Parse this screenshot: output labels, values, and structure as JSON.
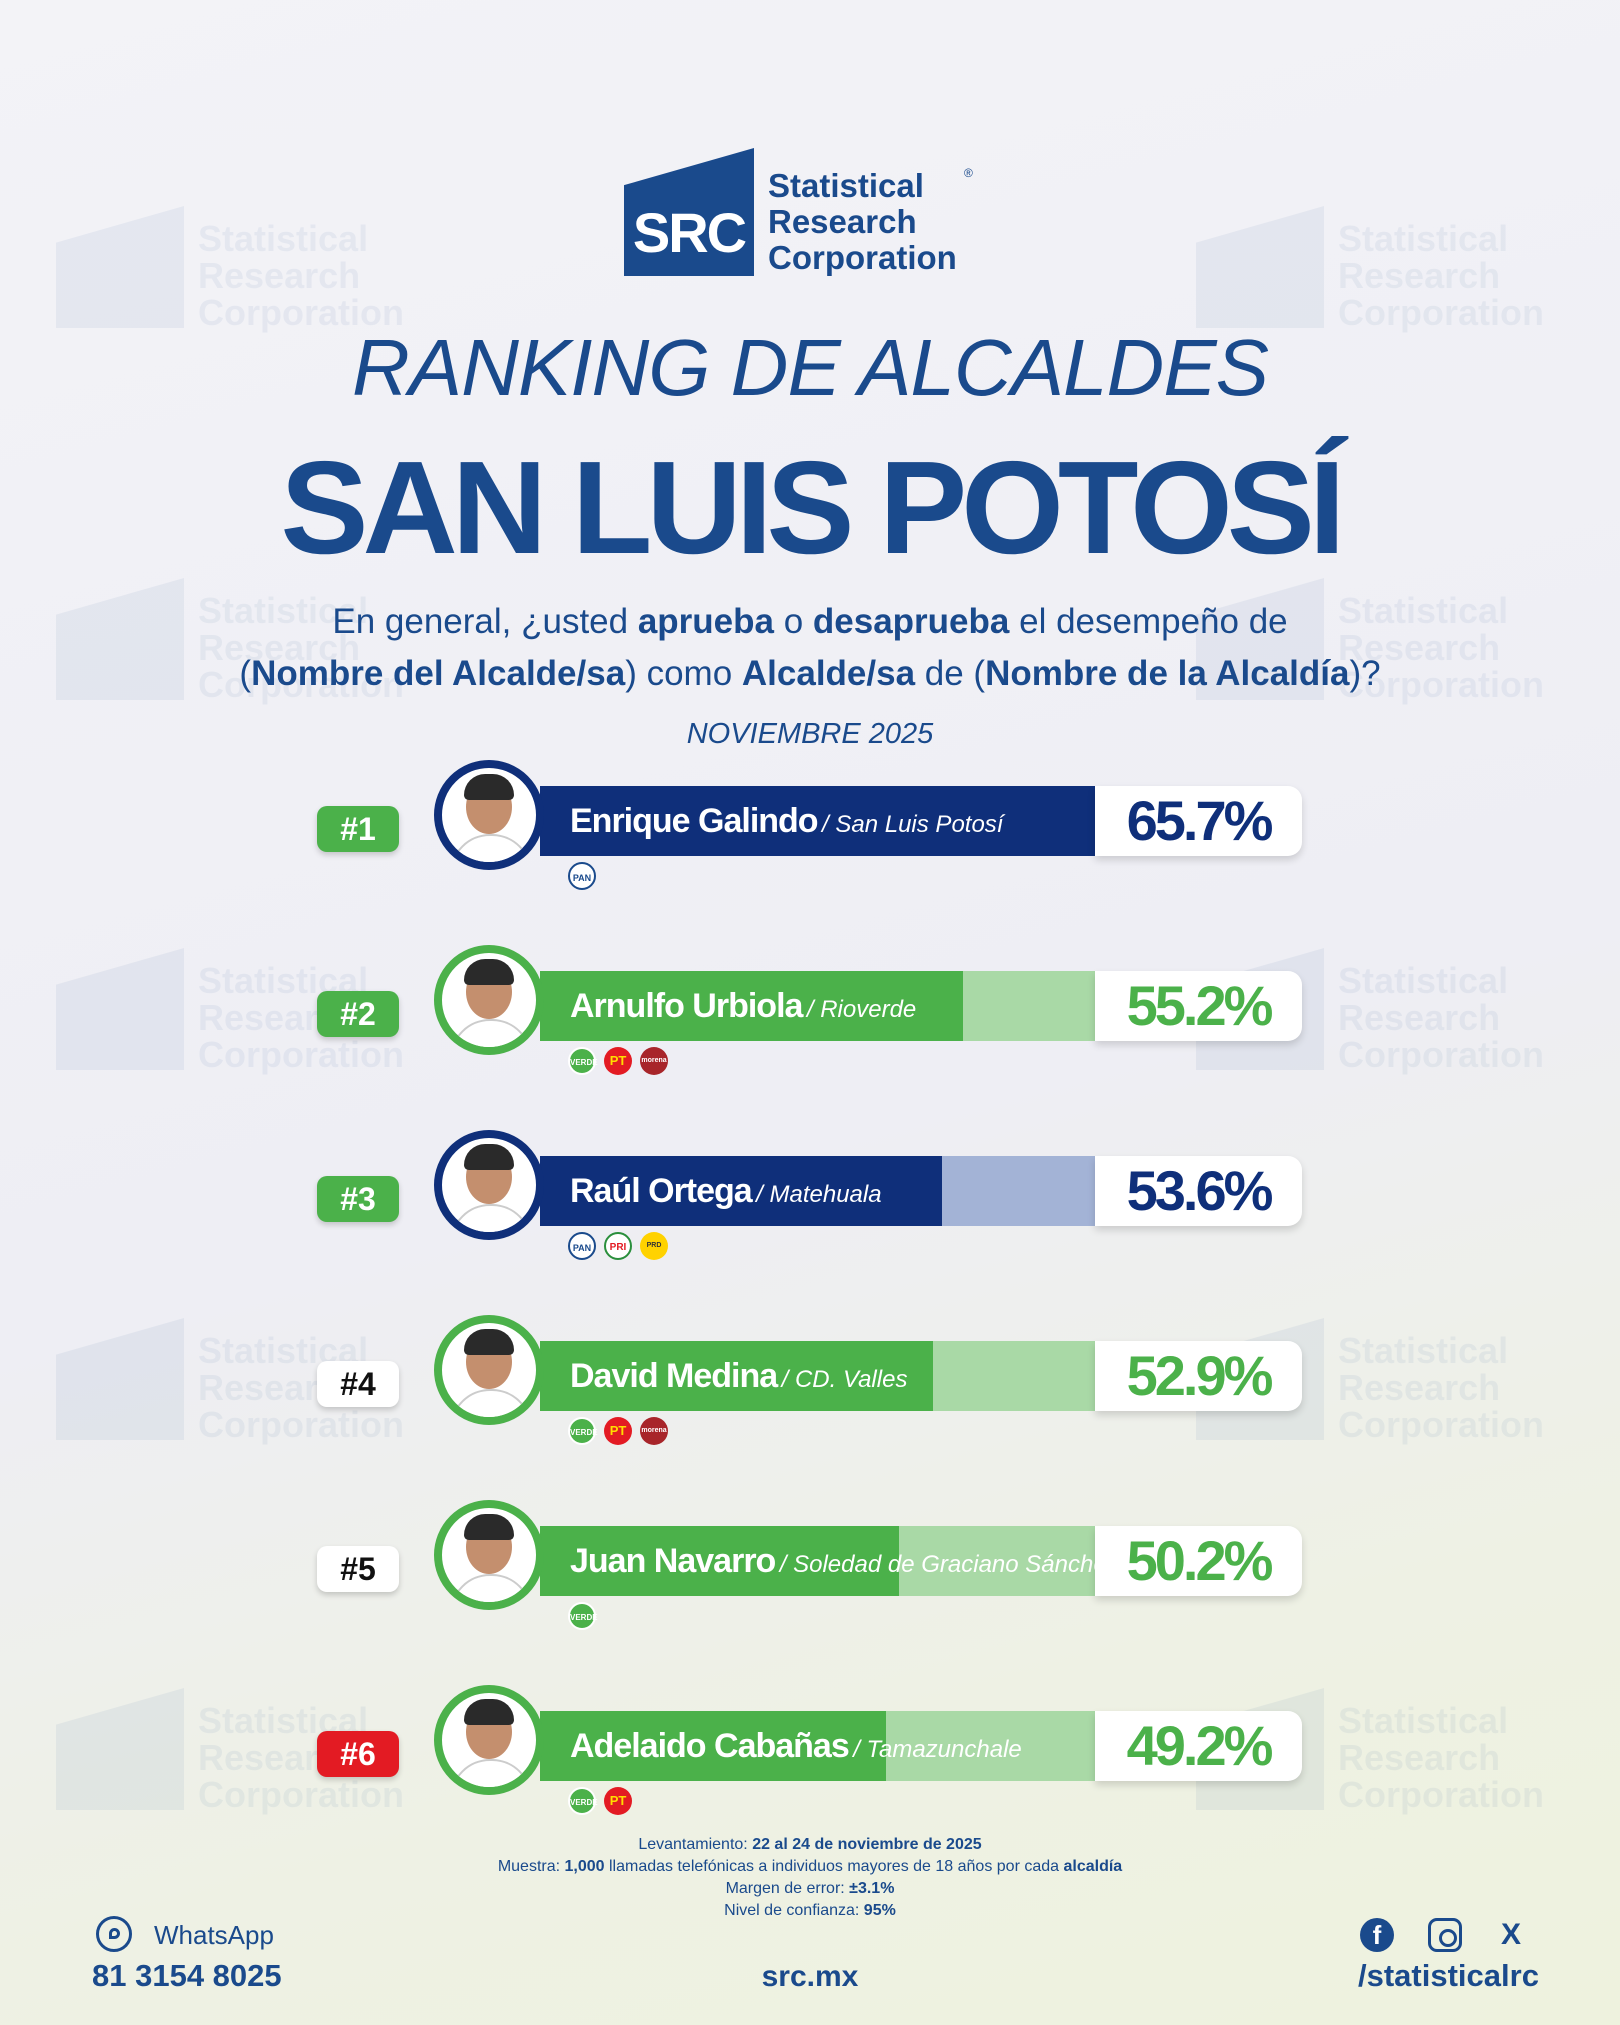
{
  "brand": {
    "mark": "SRC",
    "name_lines": [
      "Statistical",
      "Research",
      "Corporation"
    ],
    "registered": "®"
  },
  "header": {
    "kicker": "RANKING DE ALCALDES",
    "title": "SAN LUIS POTOSÍ",
    "question": {
      "p1": "En general, ¿usted ",
      "b1": "aprueba",
      "p2": " o ",
      "b2": "desaprueba",
      "p3": " el desempeño de",
      "p4": "(",
      "b3": "Nombre del Alcalde/sa",
      "p5": ") como ",
      "b4": "Alcalde/sa",
      "p6": " de (",
      "b5": "Nombre de la Alcaldía",
      "p7": ")?"
    },
    "date": "NOVIEMBRE 2025"
  },
  "colors": {
    "navy": "#1a4a8c",
    "navy_dark": "#0f2f7a",
    "navy_light": "#a3b3d6",
    "green": "#4bb14a",
    "green_light": "#a9d9a6",
    "red": "#e31b23"
  },
  "chart_data": {
    "type": "bar",
    "orientation": "horizontal",
    "title": "RANKING DE ALCALDES",
    "xlim": [
      0,
      100
    ],
    "unit": "%",
    "entries": [
      {
        "rank": "#1",
        "name": "Enrique Galindo",
        "municipality": "/ San Luis Potosí",
        "value": 65.7,
        "label": "65.7%",
        "color": "navy",
        "rank_style": "green",
        "parties": [
          "PAN"
        ]
      },
      {
        "rank": "#2",
        "name": "Arnulfo Urbiola",
        "municipality": "/ Rioverde",
        "value": 55.2,
        "label": "55.2%",
        "color": "green",
        "rank_style": "green",
        "parties": [
          "VERDE",
          "PT",
          "morena"
        ]
      },
      {
        "rank": "#3",
        "name": "Raúl Ortega",
        "municipality": "/ Matehuala",
        "value": 53.6,
        "label": "53.6%",
        "color": "navy",
        "rank_style": "green",
        "parties": [
          "PAN",
          "PRI",
          "PRD"
        ]
      },
      {
        "rank": "#4",
        "name": "David Medina",
        "municipality": "/ CD. Valles",
        "value": 52.9,
        "label": "52.9%",
        "color": "green",
        "rank_style": "white",
        "parties": [
          "VERDE",
          "PT",
          "morena"
        ]
      },
      {
        "rank": "#5",
        "name": "Juan Navarro",
        "municipality": "/ Soledad de Graciano Sánchez",
        "value": 50.2,
        "label": "50.2%",
        "color": "green",
        "rank_style": "white",
        "parties": [
          "VERDE"
        ]
      },
      {
        "rank": "#6",
        "name": "Adelaido Cabañas",
        "municipality": "/ Tamazunchale",
        "value": 49.2,
        "label": "49.2%",
        "color": "green",
        "rank_style": "red",
        "parties": [
          "VERDE",
          "PT"
        ]
      }
    ]
  },
  "party_labels": {
    "PAN": "PAN",
    "VERDE": "VERDE",
    "PT": "PT",
    "morena": "morena",
    "PRI": "PRI",
    "PRD": "PRD"
  },
  "notes": {
    "l1a": "Levantamiento: ",
    "l1b": "22 al 24 de noviembre de 2025",
    "l2a": "Muestra: ",
    "l2b": "1,000",
    "l2c": " llamadas telefónicas a individuos mayores de 18 años por cada ",
    "l2d": "alcaldía",
    "l3a": "Margen de error: ",
    "l3b": "±3.1%",
    "l4a": "Nivel de confianza: ",
    "l4b": "95%"
  },
  "footer": {
    "whatsapp_label": "WhatsApp",
    "phone": "81 3154 8025",
    "site": "src.mx",
    "handle": "/statisticalrc",
    "icons": [
      "whatsapp-icon",
      "facebook-icon",
      "instagram-icon",
      "x-icon"
    ],
    "fb_glyph": "f",
    "x_glyph": "X"
  }
}
